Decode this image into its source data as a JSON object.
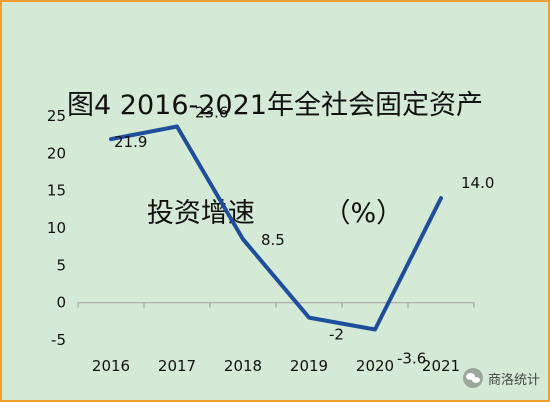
{
  "chart_data": {
    "type": "line",
    "title_line1": "图4 2016-2021年全社会固定资产",
    "title_line2": "投资增速        （%）",
    "xlabel": "",
    "ylabel": "",
    "categories": [
      "2016",
      "2017",
      "2018",
      "2019",
      "2020",
      "2021"
    ],
    "series": [
      {
        "values": [
          21.9,
          23.6,
          8.5,
          -2,
          -3.6,
          14.0
        ],
        "labels": [
          "21.9",
          "23.6",
          "8.5",
          "-2",
          "-3.6",
          "14.0"
        ]
      }
    ],
    "ylim": [
      -5,
      25
    ],
    "yticks": [
      -5,
      0,
      5,
      10,
      15,
      20,
      25
    ],
    "grid": false,
    "legend": "none",
    "line_color": "#1f4e9a",
    "axis_color": "#a6a6a6"
  },
  "watermark": {
    "icon": "wechat-icon",
    "text": "商洛统计"
  }
}
